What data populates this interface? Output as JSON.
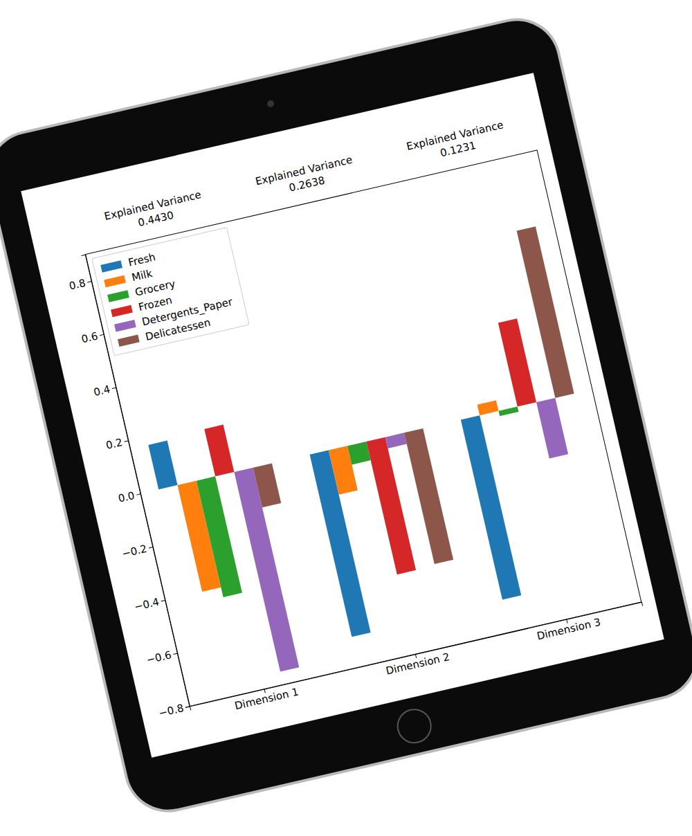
{
  "chart_data": {
    "type": "bar",
    "categories": [
      "Dimension 1",
      "Dimension 2",
      "Dimension 3"
    ],
    "series": [
      {
        "name": "Fresh",
        "color": "#1f77b4",
        "values": [
          0.1675,
          -0.6859,
          -0.6774
        ]
      },
      {
        "name": "Milk",
        "color": "#ff7f0e",
        "values": [
          -0.4014,
          -0.1672,
          0.0402
        ]
      },
      {
        "name": "Grocery",
        "color": "#2ca02c",
        "values": [
          -0.4381,
          -0.0707,
          -0.0195
        ]
      },
      {
        "name": "Frozen",
        "color": "#d62728",
        "values": [
          0.1782,
          -0.5005,
          0.315
        ]
      },
      {
        "name": "Detergents_Paper",
        "color": "#9467bd",
        "values": [
          -0.7514,
          -0.0424,
          -0.2117
        ]
      },
      {
        "name": "Delicatessen",
        "color": "#8c564b",
        "values": [
          -0.1499,
          -0.4941,
          0.6286
        ]
      }
    ],
    "explained_variance": {
      "title": "Explained Variance",
      "values": [
        0.443,
        0.2638,
        0.1231
      ],
      "value_labels": [
        "0.4430",
        "0.2638",
        "0.1231"
      ]
    },
    "ylim": [
      -0.8,
      0.9
    ],
    "yticks": [
      {
        "value": -0.8,
        "label": "−0.8"
      },
      {
        "value": -0.6,
        "label": "−0.6"
      },
      {
        "value": -0.4,
        "label": "−0.4"
      },
      {
        "value": -0.2,
        "label": "−0.2"
      },
      {
        "value": 0,
        "label": "0.0"
      },
      0.2,
      0.4,
      0.6,
      0.8
    ],
    "grid": false,
    "legend": "upper left"
  }
}
